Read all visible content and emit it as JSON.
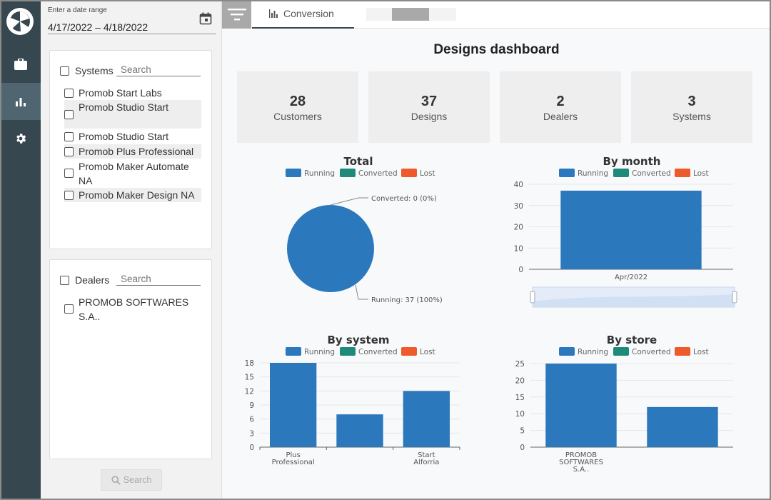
{
  "sidebar": {
    "logo": "pie-logo-icon",
    "items": [
      {
        "icon": "briefcase-icon",
        "active": false
      },
      {
        "icon": "bar-chart-icon",
        "active": true
      },
      {
        "icon": "gear-icon",
        "active": false
      }
    ]
  },
  "filters": {
    "date_label": "Enter a date range",
    "date_value": "4/17/2022 – 4/18/2022",
    "systems": {
      "title": "Systems",
      "search_placeholder": "Search",
      "items": [
        {
          "label": "Promob Start Labs",
          "checked": false
        },
        {
          "label": "Promob Studio Start",
          "checked": false
        },
        {
          "label": "Promob Studio Start",
          "checked": false
        },
        {
          "label": "Promob Plus Professional",
          "checked": false
        },
        {
          "label": "Promob Maker Automate NA",
          "checked": false
        },
        {
          "label": "Promob Maker Design NA",
          "checked": false
        }
      ]
    },
    "dealers": {
      "title": "Dealers",
      "search_placeholder": "Search",
      "items": [
        {
          "label": "PROMOB SOFTWARES S.A..",
          "checked": false
        }
      ]
    },
    "search_button": "Search"
  },
  "topbar": {
    "tab_label": "Conversion"
  },
  "dashboard": {
    "title": "Designs dashboard",
    "kpis": [
      {
        "value": "28",
        "label": "Customers"
      },
      {
        "value": "37",
        "label": "Designs"
      },
      {
        "value": "2",
        "label": "Dealers"
      },
      {
        "value": "3",
        "label": "Systems"
      }
    ]
  },
  "colors": {
    "running": "#2b78bd",
    "converted": "#1f8a7a",
    "lost": "#ee5a2b",
    "rail": "#37474f"
  },
  "legend": [
    "Running",
    "Converted",
    "Lost"
  ],
  "chart_data": [
    {
      "id": "total",
      "type": "pie",
      "title": "Total",
      "labels": [
        "Running",
        "Converted",
        "Lost"
      ],
      "values": [
        37,
        0,
        0
      ],
      "annotations": [
        "Converted: 0 (0%)",
        "Running: 37 (100%)"
      ]
    },
    {
      "id": "by_month",
      "type": "bar",
      "title": "By month",
      "categories": [
        "Apr/2022"
      ],
      "series": [
        {
          "name": "Running",
          "values": [
            37
          ]
        }
      ],
      "ylim": [
        0,
        40
      ],
      "yticks": [
        0,
        10,
        20,
        30,
        40
      ],
      "zoom_slider": true
    },
    {
      "id": "by_system",
      "type": "bar",
      "title": "By system",
      "categories": [
        "Plus\nProfessional",
        "",
        "Start\nAlforria"
      ],
      "series": [
        {
          "name": "Running",
          "values": [
            18,
            7,
            12
          ]
        }
      ],
      "ylim": [
        0,
        18
      ],
      "yticks": [
        0,
        3,
        6,
        9,
        12,
        15,
        18
      ]
    },
    {
      "id": "by_store",
      "type": "bar",
      "title": "By store",
      "categories": [
        "PROMOB\nSOFTWARES\nS.A..",
        ""
      ],
      "series": [
        {
          "name": "Running",
          "values": [
            25,
            12
          ]
        }
      ],
      "ylim": [
        0,
        25
      ],
      "yticks": [
        0,
        5,
        10,
        15,
        20,
        25
      ]
    }
  ]
}
